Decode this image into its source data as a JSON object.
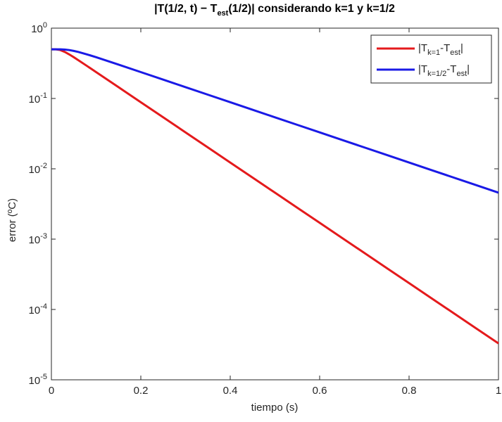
{
  "chart_data": {
    "type": "line",
    "title": [
      "|T(1/2, t) − T",
      "est",
      "(1/2)| considerando k=1 y k=1/2"
    ],
    "xlabel": "tiempo (s)",
    "ylabel": "error (ºC)",
    "x": [
      0,
      0.01,
      0.02,
      0.03,
      0.04,
      0.05,
      0.06,
      0.08,
      0.1,
      0.15,
      0.2,
      0.25,
      0.3,
      0.35,
      0.4,
      0.45,
      0.5,
      0.55,
      0.6,
      0.65,
      0.7,
      0.75,
      0.8,
      0.85,
      0.9,
      0.95,
      1
    ],
    "series": [
      {
        "name": [
          "|T",
          "k=1",
          "-T",
          "est",
          "|"
        ],
        "color": "#e41a1c",
        "values": [
          0.5,
          0.4996,
          0.4876,
          0.4587,
          0.4229,
          0.3862,
          0.3511,
          0.2888,
          0.2372,
          0.1448,
          0.08843,
          0.05399,
          0.03296,
          0.02012,
          0.01228,
          0.007499,
          0.004578,
          0.002795,
          0.001707,
          0.001042,
          0.000636,
          0.000388,
          0.000237,
          0.0001447,
          8.83e-05,
          5.39e-05,
          3.29e-05
        ]
      },
      {
        "name": [
          "|T",
          "k=1/2",
          "-T",
          "est",
          "|"
        ],
        "color": "#1a1ae6",
        "values": [
          0.5,
          0.5,
          0.4996,
          0.496,
          0.4876,
          0.4747,
          0.4587,
          0.4229,
          0.3862,
          0.3035,
          0.2372,
          0.1854,
          0.1448,
          0.1132,
          0.08843,
          0.0691,
          0.05399,
          0.04218,
          0.03296,
          0.02576,
          0.02012,
          0.01573,
          0.01228,
          0.009593,
          0.007499,
          0.00586,
          0.004578
        ]
      }
    ],
    "xlim": [
      0,
      1
    ],
    "xticks": [
      0,
      0.2,
      0.4,
      0.6,
      0.8,
      1
    ],
    "ylim": [
      1e-05,
      1
    ],
    "ylog": true,
    "yticks": [
      {
        "value": 1e-05,
        "label": [
          "10",
          "-5"
        ]
      },
      {
        "value": 0.0001,
        "label": [
          "10",
          "-4"
        ]
      },
      {
        "value": 0.001,
        "label": [
          "10",
          "-3"
        ]
      },
      {
        "value": 0.01,
        "label": [
          "10",
          "-2"
        ]
      },
      {
        "value": 0.1,
        "label": [
          "10",
          "-1"
        ]
      },
      {
        "value": 1,
        "label": [
          "10",
          "0"
        ]
      }
    ],
    "legend": "top-right"
  }
}
